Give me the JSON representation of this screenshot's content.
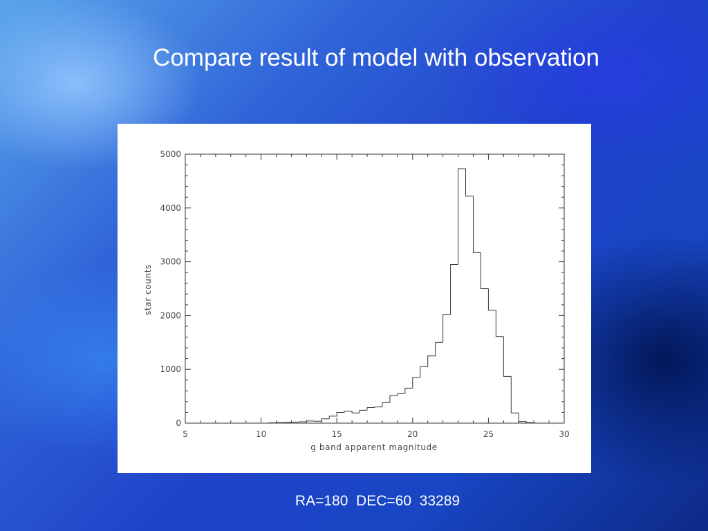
{
  "slide": {
    "title": "Compare result of model with observation",
    "caption": "RA=180  DEC=60  33289"
  },
  "colors": {
    "title_text": "#ffffff",
    "chart_background": "#ffffff",
    "axis_and_line": "#333333"
  },
  "chart_data": {
    "type": "histogram",
    "xlabel": "g band apparent magnitude",
    "ylabel": "star counts",
    "xlim": [
      5,
      30
    ],
    "ylim": [
      0,
      5000
    ],
    "x_ticks": [
      5,
      10,
      15,
      20,
      25,
      30
    ],
    "x_tick_labels": [
      "5",
      "10",
      "15",
      "20",
      "25",
      "30"
    ],
    "y_ticks": [
      0,
      1000,
      2000,
      3000,
      4000,
      5000
    ],
    "y_tick_labels": [
      "0",
      "1000",
      "2000",
      "3000",
      "4000",
      "5000"
    ],
    "bin_width": 0.5,
    "bins": [
      {
        "x": 10.5,
        "y": 5
      },
      {
        "x": 11.0,
        "y": 10
      },
      {
        "x": 11.5,
        "y": 15
      },
      {
        "x": 12.0,
        "y": 20
      },
      {
        "x": 12.5,
        "y": 25
      },
      {
        "x": 13.0,
        "y": 40
      },
      {
        "x": 13.5,
        "y": 35
      },
      {
        "x": 14.0,
        "y": 80
      },
      {
        "x": 14.5,
        "y": 130
      },
      {
        "x": 15.0,
        "y": 200
      },
      {
        "x": 15.5,
        "y": 220
      },
      {
        "x": 16.0,
        "y": 190
      },
      {
        "x": 16.5,
        "y": 240
      },
      {
        "x": 17.0,
        "y": 290
      },
      {
        "x": 17.5,
        "y": 300
      },
      {
        "x": 18.0,
        "y": 380
      },
      {
        "x": 18.5,
        "y": 510
      },
      {
        "x": 19.0,
        "y": 550
      },
      {
        "x": 19.5,
        "y": 650
      },
      {
        "x": 20.0,
        "y": 850
      },
      {
        "x": 20.5,
        "y": 1050
      },
      {
        "x": 21.0,
        "y": 1250
      },
      {
        "x": 21.5,
        "y": 1500
      },
      {
        "x": 22.0,
        "y": 2020
      },
      {
        "x": 22.5,
        "y": 2950
      },
      {
        "x": 23.0,
        "y": 4730
      },
      {
        "x": 23.5,
        "y": 4220
      },
      {
        "x": 24.0,
        "y": 3170
      },
      {
        "x": 24.5,
        "y": 2500
      },
      {
        "x": 25.0,
        "y": 2100
      },
      {
        "x": 25.5,
        "y": 1610
      },
      {
        "x": 26.0,
        "y": 870
      },
      {
        "x": 26.5,
        "y": 190
      },
      {
        "x": 27.0,
        "y": 30
      },
      {
        "x": 27.5,
        "y": 10
      },
      {
        "x": 28.0,
        "y": 0
      }
    ]
  }
}
